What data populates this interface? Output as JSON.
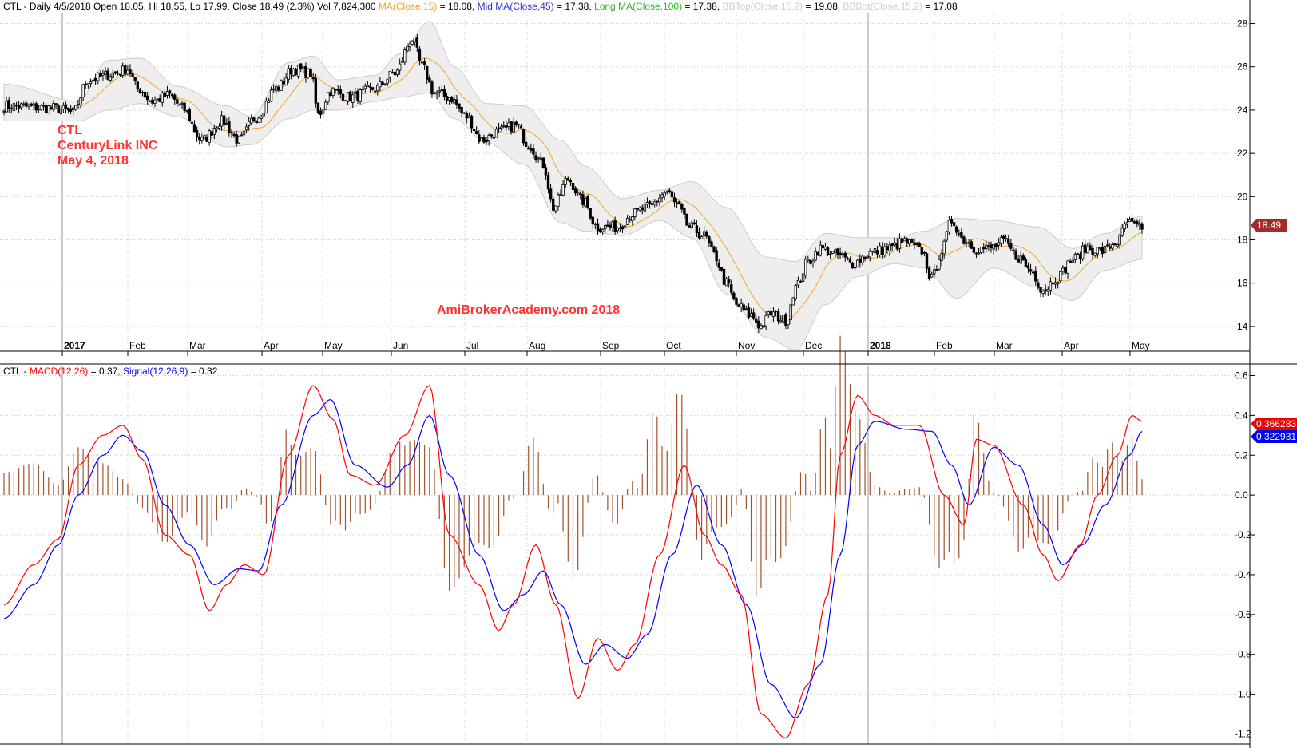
{
  "header_price": {
    "ticker": "CTL",
    "info": " - Daily 4/5/2018 Open 18.05, Hi 18.55, Lo 17.99, Close 18.49 (2.3%) Vol 7,824,300 ",
    "ma_label": "MA(Close,15)",
    "ma_value": " = 18.08, ",
    "mid_label": "Mid MA(Close,45)",
    "mid_value": " = 17.38, ",
    "long_label": "Long MA(Close,100)",
    "long_value": " = 17.38, ",
    "bbtop_label": "BBTop(Close,15,2)",
    "bbtop_value": " = 19.08, ",
    "bbbot_label": "BBBot(Close,15,2)",
    "bbbot_value": " = 17.08"
  },
  "header_macd": {
    "ticker": "CTL",
    "sep": " - ",
    "macd_label": "MACD(12,26)",
    "macd_value": " = 0.37, ",
    "signal_label": "Signal(12,26,9)",
    "signal_value": " = 0.32"
  },
  "annotation": {
    "line1": "CTL",
    "line2": "CenturyLink INC",
    "line3": "May 4, 2018",
    "watermark": "AmiBrokerAcademy.com   2018"
  },
  "last_price_tag": "18.49",
  "macd_tag": "0.366283",
  "signal_tag": "0.322931",
  "colors": {
    "ma": "#f5a623",
    "mid": "#3333cc",
    "long": "#22c022",
    "bb": "#cccccc",
    "macd": "#ff0000",
    "signal": "#0000ff",
    "hist": "#a0522d",
    "annotation": "#ff3333",
    "tag": "#a52a2a",
    "grid": "#cccccc"
  },
  "chart_data": [
    {
      "type": "candlestick",
      "ylim": [
        13.0,
        28.5
      ],
      "yticks": [
        "14",
        "16",
        "18",
        "20",
        "22",
        "24",
        "26",
        "28"
      ],
      "xlabels": [
        "2017",
        "Feb",
        "Mar",
        "Apr",
        "May",
        "Jun",
        "Jul",
        "Aug",
        "Sep",
        "Oct",
        "Nov",
        "Dec",
        "2018",
        "Feb",
        "Mar",
        "Apr",
        "May"
      ],
      "bold_xlabels": [
        "2017",
        "2018"
      ],
      "close_keypoints": [
        [
          0,
          24.2
        ],
        [
          20,
          24.1
        ],
        [
          28,
          23.9
        ],
        [
          34,
          25.4
        ],
        [
          45,
          25.7
        ],
        [
          50,
          25.9
        ],
        [
          54,
          25.0
        ],
        [
          60,
          24.4
        ],
        [
          67,
          24.7
        ],
        [
          72,
          24.1
        ],
        [
          80,
          22.6
        ],
        [
          88,
          23.5
        ],
        [
          95,
          22.6
        ],
        [
          102,
          23.7
        ],
        [
          110,
          25.0
        ],
        [
          117,
          25.9
        ],
        [
          124,
          25.7
        ],
        [
          127,
          23.8
        ],
        [
          132,
          24.9
        ],
        [
          140,
          24.6
        ],
        [
          150,
          25.0
        ],
        [
          158,
          25.7
        ],
        [
          165,
          27.3
        ],
        [
          169,
          26.0
        ],
        [
          174,
          24.8
        ],
        [
          180,
          24.6
        ],
        [
          187,
          23.7
        ],
        [
          193,
          22.6
        ],
        [
          200,
          23.0
        ],
        [
          207,
          23.3
        ],
        [
          212,
          22.4
        ],
        [
          218,
          21.5
        ],
        [
          222,
          19.5
        ],
        [
          228,
          20.8
        ],
        [
          234,
          19.8
        ],
        [
          240,
          18.6
        ],
        [
          248,
          18.6
        ],
        [
          254,
          19.2
        ],
        [
          260,
          19.5
        ],
        [
          268,
          20.2
        ],
        [
          272,
          19.6
        ],
        [
          277,
          18.6
        ],
        [
          283,
          18.2
        ],
        [
          287,
          17.3
        ],
        [
          292,
          16.0
        ],
        [
          296,
          15.0
        ],
        [
          302,
          14.5
        ],
        [
          306,
          14.0
        ],
        [
          310,
          14.6
        ],
        [
          316,
          14.3
        ],
        [
          320,
          15.8
        ],
        [
          325,
          17.0
        ],
        [
          330,
          17.6
        ],
        [
          337,
          17.3
        ],
        [
          343,
          16.9
        ],
        [
          350,
          17.4
        ],
        [
          357,
          17.6
        ],
        [
          364,
          17.9
        ],
        [
          371,
          17.5
        ],
        [
          375,
          16.2
        ],
        [
          379,
          17.5
        ],
        [
          383,
          18.9
        ],
        [
          388,
          18.0
        ],
        [
          393,
          17.6
        ],
        [
          398,
          17.6
        ],
        [
          404,
          17.9
        ],
        [
          410,
          17.2
        ],
        [
          415,
          16.6
        ],
        [
          420,
          15.7
        ],
        [
          426,
          16.3
        ],
        [
          432,
          17.1
        ],
        [
          438,
          17.6
        ],
        [
          444,
          17.5
        ],
        [
          450,
          17.9
        ],
        [
          454,
          18.8
        ],
        [
          458,
          18.6
        ],
        [
          460,
          18.45
        ]
      ],
      "bbtop_keypoints": [
        [
          0,
          25.2
        ],
        [
          30,
          24.4
        ],
        [
          42,
          26.3
        ],
        [
          55,
          26.4
        ],
        [
          70,
          25.1
        ],
        [
          90,
          24.2
        ],
        [
          100,
          23.7
        ],
        [
          115,
          26.2
        ],
        [
          125,
          26.5
        ],
        [
          135,
          25.4
        ],
        [
          150,
          25.6
        ],
        [
          160,
          26.6
        ],
        [
          172,
          28.1
        ],
        [
          182,
          26.0
        ],
        [
          195,
          24.3
        ],
        [
          210,
          24.2
        ],
        [
          225,
          22.6
        ],
        [
          235,
          21.4
        ],
        [
          250,
          19.9
        ],
        [
          265,
          20.3
        ],
        [
          278,
          20.7
        ],
        [
          292,
          19.5
        ],
        [
          308,
          17.2
        ],
        [
          320,
          17.0
        ],
        [
          332,
          18.3
        ],
        [
          345,
          18.1
        ],
        [
          360,
          18.1
        ],
        [
          372,
          18.4
        ],
        [
          385,
          19.0
        ],
        [
          400,
          18.9
        ],
        [
          418,
          18.6
        ],
        [
          432,
          17.6
        ],
        [
          445,
          18.3
        ],
        [
          460,
          19.1
        ]
      ],
      "bbbot_keypoints": [
        [
          0,
          23.5
        ],
        [
          30,
          23.5
        ],
        [
          42,
          24.0
        ],
        [
          55,
          24.3
        ],
        [
          70,
          23.7
        ],
        [
          90,
          22.3
        ],
        [
          100,
          22.4
        ],
        [
          115,
          23.6
        ],
        [
          125,
          24.0
        ],
        [
          135,
          24.0
        ],
        [
          150,
          24.4
        ],
        [
          160,
          24.6
        ],
        [
          172,
          24.8
        ],
        [
          182,
          23.6
        ],
        [
          195,
          22.5
        ],
        [
          210,
          21.5
        ],
        [
          225,
          18.8
        ],
        [
          235,
          18.4
        ],
        [
          250,
          18.2
        ],
        [
          265,
          18.9
        ],
        [
          278,
          18.1
        ],
        [
          292,
          15.5
        ],
        [
          308,
          13.5
        ],
        [
          320,
          12.9
        ],
        [
          332,
          15.0
        ],
        [
          345,
          16.3
        ],
        [
          360,
          16.9
        ],
        [
          372,
          16.7
        ],
        [
          385,
          15.3
        ],
        [
          400,
          16.7
        ],
        [
          418,
          15.8
        ],
        [
          432,
          15.2
        ],
        [
          445,
          16.6
        ],
        [
          460,
          17.1
        ]
      ]
    },
    {
      "type": "line",
      "ylim": [
        -1.25,
        0.65
      ],
      "yticks": [
        "-1.2",
        "-1.0",
        "-0.8",
        "-0.6",
        "-0.4",
        "-0.2",
        "0.0",
        "0.2",
        "0.4",
        "0.6"
      ],
      "series": [
        {
          "name": "MACD(12,26)",
          "keypoints": [
            [
              0,
              -0.55
            ],
            [
              12,
              -0.35
            ],
            [
              22,
              -0.22
            ],
            [
              30,
              0.15
            ],
            [
              40,
              0.3
            ],
            [
              48,
              0.35
            ],
            [
              56,
              0.18
            ],
            [
              65,
              -0.2
            ],
            [
              75,
              -0.3
            ],
            [
              83,
              -0.58
            ],
            [
              90,
              -0.45
            ],
            [
              97,
              -0.35
            ],
            [
              105,
              -0.4
            ],
            [
              115,
              0.2
            ],
            [
              125,
              0.55
            ],
            [
              133,
              0.38
            ],
            [
              140,
              0.1
            ],
            [
              150,
              0.05
            ],
            [
              162,
              0.3
            ],
            [
              172,
              0.55
            ],
            [
              180,
              -0.2
            ],
            [
              192,
              -0.45
            ],
            [
              200,
              -0.68
            ],
            [
              206,
              -0.55
            ],
            [
              215,
              -0.25
            ],
            [
              223,
              -0.55
            ],
            [
              232,
              -1.02
            ],
            [
              240,
              -0.72
            ],
            [
              248,
              -0.88
            ],
            [
              255,
              -0.75
            ],
            [
              265,
              -0.3
            ],
            [
              275,
              0.15
            ],
            [
              283,
              -0.2
            ],
            [
              290,
              -0.35
            ],
            [
              298,
              -0.5
            ],
            [
              306,
              -1.1
            ],
            [
              316,
              -1.22
            ],
            [
              325,
              -0.95
            ],
            [
              333,
              -0.5
            ],
            [
              338,
              0.2
            ],
            [
              345,
              0.5
            ],
            [
              352,
              0.4
            ],
            [
              360,
              0.35
            ],
            [
              370,
              0.35
            ],
            [
              380,
              0.0
            ],
            [
              388,
              -0.15
            ],
            [
              393,
              0.28
            ],
            [
              400,
              0.25
            ],
            [
              412,
              -0.05
            ],
            [
              420,
              -0.3
            ],
            [
              426,
              -0.43
            ],
            [
              435,
              -0.25
            ],
            [
              442,
              0.0
            ],
            [
              450,
              0.2
            ],
            [
              456,
              0.4
            ],
            [
              460,
              0.37
            ]
          ]
        },
        {
          "name": "Signal(12,26,9)",
          "keypoints": [
            [
              0,
              -0.62
            ],
            [
              12,
              -0.45
            ],
            [
              22,
              -0.25
            ],
            [
              30,
              0.0
            ],
            [
              40,
              0.2
            ],
            [
              48,
              0.3
            ],
            [
              56,
              0.22
            ],
            [
              65,
              -0.05
            ],
            [
              75,
              -0.25
            ],
            [
              85,
              -0.45
            ],
            [
              95,
              -0.37
            ],
            [
              103,
              -0.38
            ],
            [
              112,
              -0.05
            ],
            [
              125,
              0.4
            ],
            [
              132,
              0.48
            ],
            [
              142,
              0.15
            ],
            [
              155,
              0.04
            ],
            [
              163,
              0.15
            ],
            [
              172,
              0.4
            ],
            [
              180,
              0.1
            ],
            [
              192,
              -0.3
            ],
            [
              202,
              -0.58
            ],
            [
              210,
              -0.5
            ],
            [
              218,
              -0.38
            ],
            [
              225,
              -0.55
            ],
            [
              235,
              -0.85
            ],
            [
              243,
              -0.75
            ],
            [
              252,
              -0.82
            ],
            [
              260,
              -0.7
            ],
            [
              270,
              -0.3
            ],
            [
              280,
              0.05
            ],
            [
              290,
              -0.25
            ],
            [
              300,
              -0.55
            ],
            [
              310,
              -0.95
            ],
            [
              320,
              -1.12
            ],
            [
              330,
              -0.85
            ],
            [
              338,
              -0.3
            ],
            [
              345,
              0.25
            ],
            [
              352,
              0.37
            ],
            [
              365,
              0.33
            ],
            [
              375,
              0.32
            ],
            [
              383,
              0.15
            ],
            [
              390,
              -0.05
            ],
            [
              400,
              0.24
            ],
            [
              410,
              0.15
            ],
            [
              420,
              -0.15
            ],
            [
              428,
              -0.35
            ],
            [
              436,
              -0.25
            ],
            [
              445,
              -0.05
            ],
            [
              455,
              0.2
            ],
            [
              460,
              0.32
            ]
          ]
        }
      ]
    }
  ]
}
